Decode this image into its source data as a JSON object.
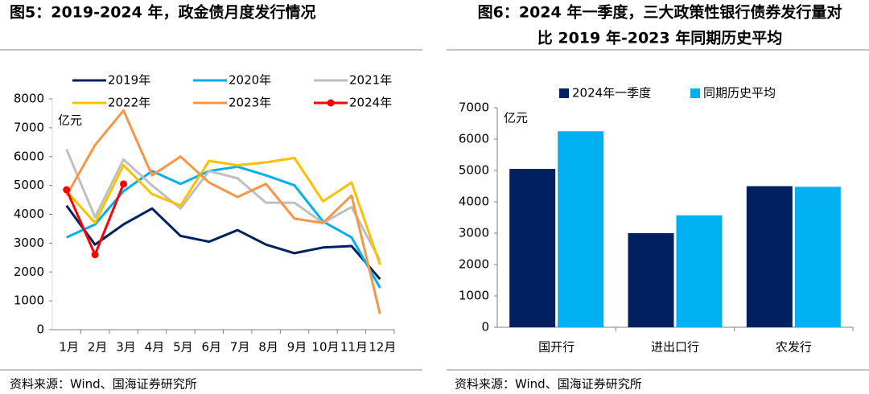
{
  "chart_data": [
    {
      "type": "line",
      "title": [
        "图5：2019-2024 年，政金债月度发行情况"
      ],
      "y_unit": "亿元",
      "categories": [
        "1月",
        "2月",
        "3月",
        "4月",
        "5月",
        "6月",
        "7月",
        "8月",
        "9月",
        "10月",
        "11月",
        "12月"
      ],
      "ylim": [
        0,
        8000
      ],
      "yticks": [
        0,
        1000,
        2000,
        3000,
        4000,
        5000,
        6000,
        7000,
        8000
      ],
      "series": [
        {
          "name": "2019年",
          "color": "#002060",
          "values": [
            4300,
            2950,
            3650,
            4200,
            3250,
            3050,
            3450,
            2950,
            2650,
            2850,
            2900,
            1750
          ]
        },
        {
          "name": "2020年",
          "color": "#00b0f0",
          "values": [
            3200,
            3650,
            4800,
            5500,
            5050,
            5500,
            5650,
            5350,
            5000,
            3750,
            3200,
            1450
          ]
        },
        {
          "name": "2021年",
          "color": "#bfbfbf",
          "values": [
            6250,
            3900,
            5900,
            5000,
            4200,
            5500,
            5250,
            4400,
            4400,
            3700,
            4250,
            2400
          ]
        },
        {
          "name": "2022年",
          "color": "#ffc000",
          "values": [
            4800,
            3700,
            5700,
            4700,
            4300,
            5850,
            5700,
            5800,
            5950,
            4450,
            5100,
            2250
          ]
        },
        {
          "name": "2023年",
          "color": "#f79646",
          "values": [
            4650,
            6400,
            7600,
            5350,
            6000,
            5100,
            4600,
            5050,
            3850,
            3700,
            4650,
            550
          ]
        },
        {
          "name": "2024年",
          "color": "#ff0000",
          "markers": true,
          "values": [
            4850,
            2600,
            5050,
            null,
            null,
            null,
            null,
            null,
            null,
            null,
            null,
            null
          ]
        }
      ],
      "source": "资料来源：Wind、国海证券研究所"
    },
    {
      "type": "bar",
      "title": [
        "图6：2024 年一季度，三大政策性银行债券发行量对",
        "比 2019 年-2023 年同期历史平均"
      ],
      "y_unit": "亿元",
      "categories": [
        "国开行",
        "进出口行",
        "农发行"
      ],
      "ylim": [
        0,
        7000
      ],
      "yticks": [
        0,
        1000,
        2000,
        3000,
        4000,
        5000,
        6000,
        7000
      ],
      "series": [
        {
          "name": "2024年一季度",
          "color": "#002060",
          "values": [
            5050,
            3000,
            4500
          ]
        },
        {
          "name": "同期历史平均",
          "color": "#00b0f0",
          "values": [
            6250,
            3570,
            4480
          ]
        }
      ],
      "source": "资料来源：Wind、国海证券研究所"
    }
  ]
}
